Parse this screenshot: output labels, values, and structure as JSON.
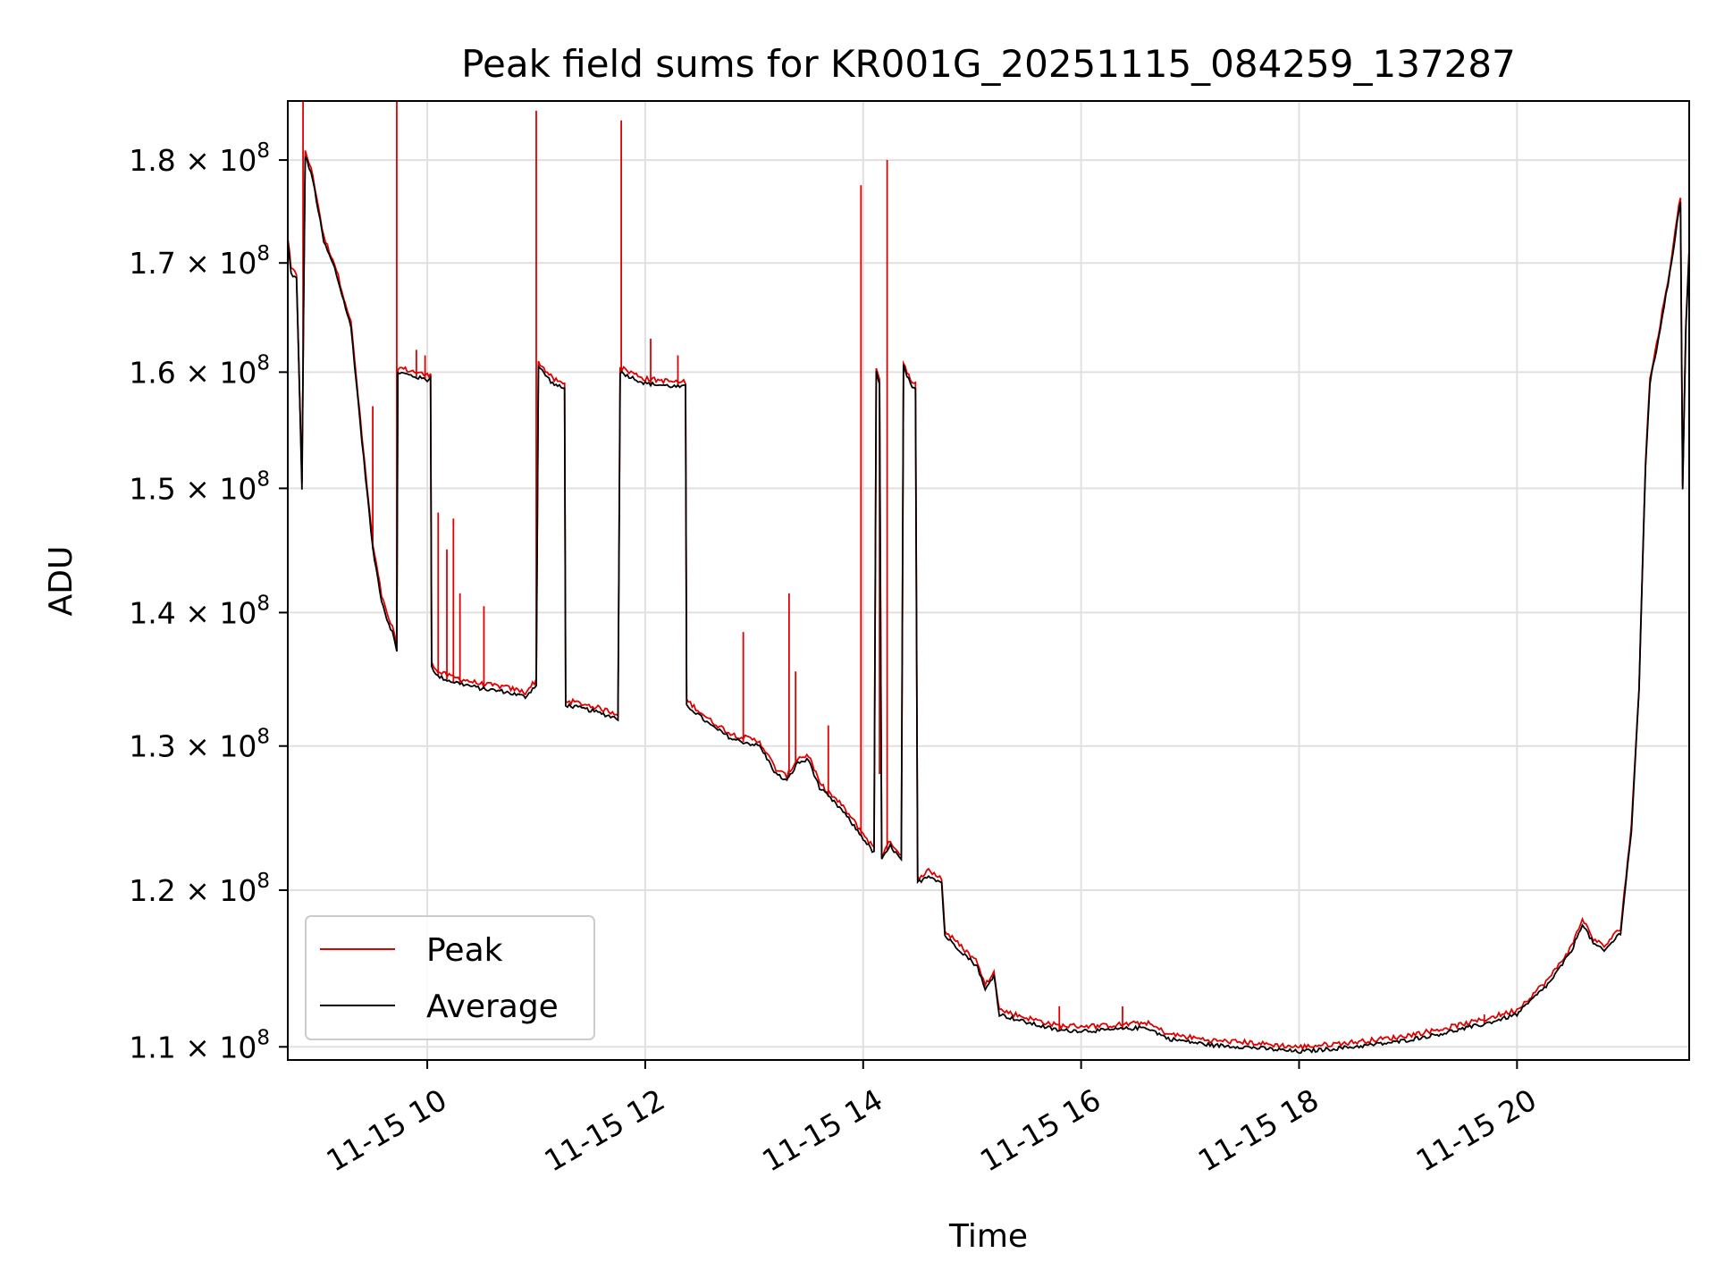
{
  "chart_data": {
    "type": "line",
    "title": "Peak field sums for KR001G_20251115_084259_137287",
    "xlabel": "Time",
    "ylabel": "ADU",
    "yscale": "log",
    "xlim": [
      8.72,
      21.58
    ],
    "ylim": [
      109200000.0,
      186000000.0
    ],
    "grid": true,
    "legend_position": "lower-left",
    "x_ticks": [
      {
        "value": 10,
        "label": "11-15 10"
      },
      {
        "value": 12,
        "label": "11-15 12"
      },
      {
        "value": 14,
        "label": "11-15 14"
      },
      {
        "value": 16,
        "label": "11-15 16"
      },
      {
        "value": 18,
        "label": "11-15 18"
      },
      {
        "value": 20,
        "label": "11-15 20"
      }
    ],
    "y_ticks": [
      {
        "value": 110000000,
        "mantissa": "1.1",
        "exp": "8"
      },
      {
        "value": 120000000,
        "mantissa": "1.2",
        "exp": "8"
      },
      {
        "value": 130000000,
        "mantissa": "1.3",
        "exp": "8"
      },
      {
        "value": 140000000,
        "mantissa": "1.4",
        "exp": "8"
      },
      {
        "value": 150000000,
        "mantissa": "1.5",
        "exp": "8"
      },
      {
        "value": 160000000,
        "mantissa": "1.6",
        "exp": "8"
      },
      {
        "value": 170000000,
        "mantissa": "1.7",
        "exp": "8"
      },
      {
        "value": 180000000,
        "mantissa": "1.8",
        "exp": "8"
      }
    ],
    "series": [
      {
        "name": "Average",
        "color": "#000000",
        "points": [
          [
            8.72,
            172000000.0
          ],
          [
            8.75,
            169000000.0
          ],
          [
            8.8,
            168500000.0
          ],
          [
            8.85,
            150000000.0
          ],
          [
            8.88,
            180500000.0
          ],
          [
            8.95,
            178000000.0
          ],
          [
            9.05,
            172000000.0
          ],
          [
            9.15,
            169500000.0
          ],
          [
            9.3,
            164000000.0
          ],
          [
            9.4,
            154000000.0
          ],
          [
            9.5,
            145000000.0
          ],
          [
            9.58,
            141000000.0
          ],
          [
            9.63,
            139500000.0
          ],
          [
            9.68,
            138500000.0
          ],
          [
            9.72,
            137000000.0
          ],
          [
            9.73,
            160000000.0
          ],
          [
            9.85,
            159700000.0
          ],
          [
            10.0,
            159300000.0
          ],
          [
            10.03,
            159500000.0
          ],
          [
            10.04,
            136000000.0
          ],
          [
            10.08,
            135200000.0
          ],
          [
            10.2,
            134800000.0
          ],
          [
            10.5,
            134200000.0
          ],
          [
            10.7,
            134000000.0
          ],
          [
            10.9,
            133600000.0
          ],
          [
            11.0,
            134500000.0
          ],
          [
            11.02,
            160500000.0
          ],
          [
            11.15,
            159000000.0
          ],
          [
            11.26,
            158500000.0
          ],
          [
            11.27,
            133000000.0
          ],
          [
            11.5,
            132600000.0
          ],
          [
            11.75,
            132000000.0
          ],
          [
            11.77,
            160000000.0
          ],
          [
            12.0,
            159000000.0
          ],
          [
            12.3,
            158700000.0
          ],
          [
            12.37,
            158700000.0
          ],
          [
            12.38,
            133000000.0
          ],
          [
            12.6,
            131500000.0
          ],
          [
            12.8,
            130500000.0
          ],
          [
            13.05,
            130000000.0
          ],
          [
            13.2,
            128000000.0
          ],
          [
            13.3,
            127500000.0
          ],
          [
            13.4,
            128800000.0
          ],
          [
            13.5,
            129000000.0
          ],
          [
            13.6,
            127000000.0
          ],
          [
            13.8,
            125500000.0
          ],
          [
            14.0,
            123500000.0
          ],
          [
            14.1,
            122500000.0
          ],
          [
            14.12,
            160000000.0
          ],
          [
            14.15,
            159000000.0
          ],
          [
            14.17,
            122000000.0
          ],
          [
            14.25,
            123000000.0
          ],
          [
            14.3,
            122500000.0
          ],
          [
            14.35,
            122000000.0
          ],
          [
            14.37,
            160500000.0
          ],
          [
            14.45,
            158500000.0
          ],
          [
            14.48,
            158500000.0
          ],
          [
            14.5,
            120500000.0
          ],
          [
            14.6,
            121000000.0
          ],
          [
            14.72,
            120500000.0
          ],
          [
            14.75,
            117000000.0
          ],
          [
            14.9,
            116000000.0
          ],
          [
            15.05,
            115000000.0
          ],
          [
            15.12,
            113500000.0
          ],
          [
            15.2,
            114500000.0
          ],
          [
            15.25,
            112000000.0
          ],
          [
            15.5,
            111500000.0
          ],
          [
            15.8,
            111000000.0
          ],
          [
            16.2,
            111000000.0
          ],
          [
            16.6,
            111200000.0
          ],
          [
            16.8,
            110500000.0
          ],
          [
            17.2,
            110100000.0
          ],
          [
            17.5,
            110000000.0
          ],
          [
            18.0,
            109700000.0
          ],
          [
            18.5,
            110000000.0
          ],
          [
            18.9,
            110300000.0
          ],
          [
            19.3,
            110800000.0
          ],
          [
            19.7,
            111400000.0
          ],
          [
            20.0,
            112000000.0
          ],
          [
            20.3,
            114000000.0
          ],
          [
            20.5,
            116000000.0
          ],
          [
            20.6,
            117800000.0
          ],
          [
            20.7,
            116500000.0
          ],
          [
            20.8,
            116000000.0
          ],
          [
            20.95,
            117200000.0
          ],
          [
            21.05,
            124000000.0
          ],
          [
            21.12,
            134000000.0
          ],
          [
            21.18,
            152000000.0
          ],
          [
            21.22,
            159000000.0
          ],
          [
            21.28,
            162000000.0
          ],
          [
            21.35,
            166000000.0
          ],
          [
            21.42,
            170000000.0
          ],
          [
            21.47,
            174000000.0
          ],
          [
            21.5,
            176000000.0
          ],
          [
            21.52,
            150000000.0
          ],
          [
            21.55,
            164000000.0
          ],
          [
            21.58,
            171000000.0
          ]
        ]
      },
      {
        "name": "Peak",
        "color": "#e00000",
        "spikes": [
          [
            8.86,
            186000000.0
          ],
          [
            9.5,
            157000000.0
          ],
          [
            9.72,
            186000000.0
          ],
          [
            9.9,
            162000000.0
          ],
          [
            9.98,
            161500000.0
          ],
          [
            10.1,
            148000000.0
          ],
          [
            10.18,
            145000000.0
          ],
          [
            10.24,
            147500000.0
          ],
          [
            10.3,
            141500000.0
          ],
          [
            10.52,
            140500000.0
          ],
          [
            11.0,
            147000000.0
          ],
          [
            11.0,
            185000000.0
          ],
          [
            11.78,
            184000000.0
          ],
          [
            12.05,
            163000000.0
          ],
          [
            12.3,
            161500000.0
          ],
          [
            12.9,
            138500000.0
          ],
          [
            13.32,
            141500000.0
          ],
          [
            13.38,
            135500000.0
          ],
          [
            13.68,
            131500000.0
          ],
          [
            13.98,
            177500000.0
          ],
          [
            14.22,
            180000000.0
          ],
          [
            14.15,
            128000000.0
          ],
          [
            15.8,
            112500000.0
          ],
          [
            16.38,
            112500000.0
          ],
          [
            19.7,
            112000000.0
          ]
        ]
      }
    ]
  },
  "legend": {
    "items": [
      {
        "label": "Peak",
        "color": "#e00000"
      },
      {
        "label": "Average",
        "color": "#000000"
      }
    ]
  },
  "colors": {
    "axes": "#000000",
    "grid": "#e0e0e0",
    "peak": "#e00000",
    "average": "#000000"
  }
}
